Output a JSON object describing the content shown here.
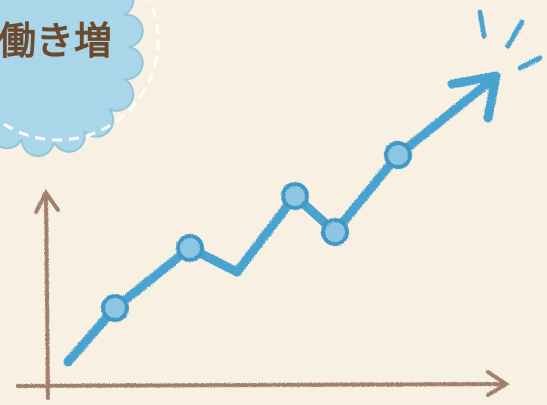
{
  "badge": {
    "text": "働き増"
  }
}
